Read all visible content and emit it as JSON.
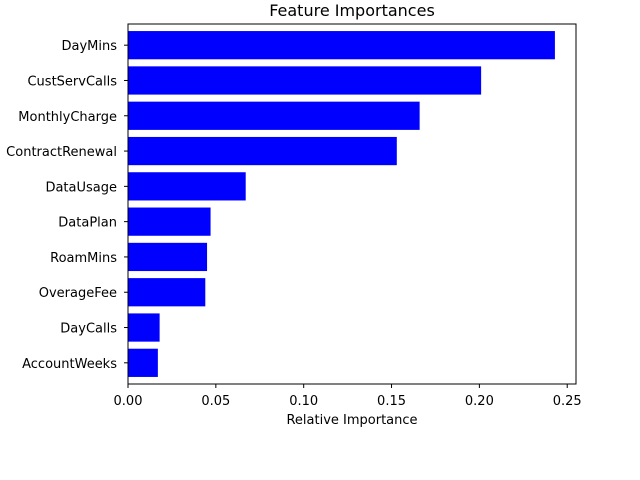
{
  "chart_data": {
    "type": "bar",
    "orientation": "horizontal",
    "title": "Feature Importances",
    "xlabel": "Relative Importance",
    "ylabel": "",
    "categories": [
      "DayMins",
      "CustServCalls",
      "MonthlyCharge",
      "ContractRenewal",
      "DataUsage",
      "DataPlan",
      "RoamMins",
      "OverageFee",
      "DayCalls",
      "AccountWeeks"
    ],
    "values": [
      0.243,
      0.201,
      0.166,
      0.153,
      0.067,
      0.047,
      0.045,
      0.044,
      0.018,
      0.017
    ],
    "xlim": [
      0,
      0.255
    ],
    "xticks": [
      0.0,
      0.05,
      0.1,
      0.15,
      0.2,
      0.25
    ],
    "xtick_labels": [
      "0.00",
      "0.05",
      "0.10",
      "0.15",
      "0.20",
      "0.25"
    ],
    "bar_color": "#0000ff",
    "grid": false
  }
}
